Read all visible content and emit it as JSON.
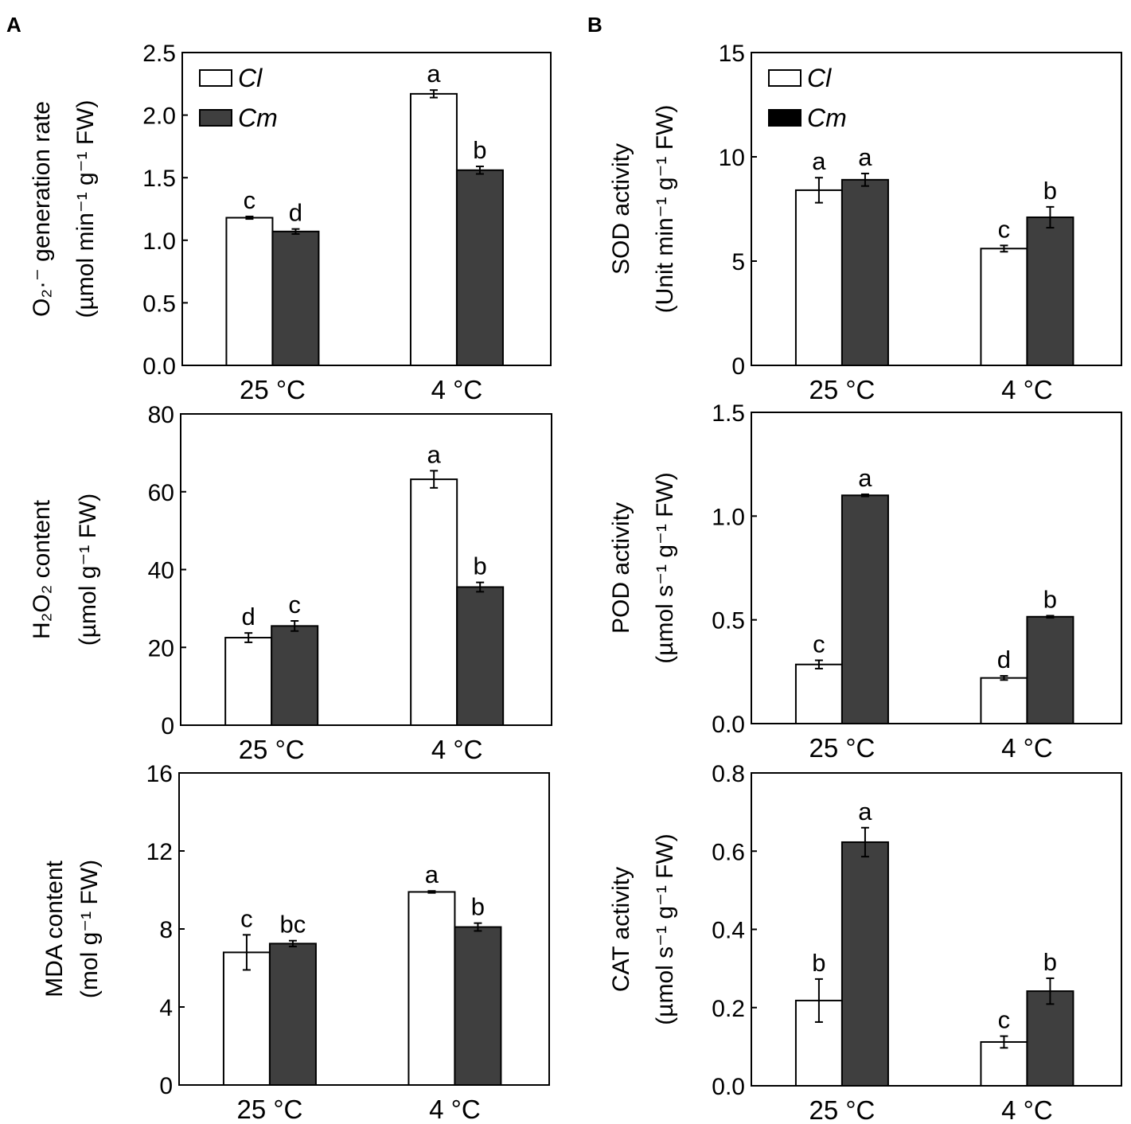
{
  "panel_letters": [
    "A",
    "B"
  ],
  "colors": {
    "cl": "#ffffff",
    "cm_panel_a": "#3f3f3f",
    "cm_panel_b": "#3f3f3f",
    "cm_legend_b": "#000000",
    "axis": "#000000"
  },
  "legend": {
    "series_1": "Cl",
    "series_2": "Cm"
  },
  "chart_data": [
    {
      "id": "o2",
      "panel": "A",
      "type": "bar",
      "categories": [
        "25 °C",
        "4 °C"
      ],
      "ylabel_lines": [
        "O₂·⁻ generation rate",
        "(µmol min⁻¹ g⁻¹ FW)"
      ],
      "ylim": [
        0,
        2.5
      ],
      "yticks": [
        0,
        0.5,
        1.0,
        1.5,
        2.0,
        2.5
      ],
      "tick_decimals": 1,
      "has_legend": true,
      "series": [
        {
          "name": "Cl",
          "values": [
            1.18,
            2.17
          ],
          "errors": [
            0.01,
            0.03
          ],
          "letters": [
            "c",
            "a"
          ]
        },
        {
          "name": "Cm",
          "values": [
            1.07,
            1.56
          ],
          "errors": [
            0.02,
            0.03
          ],
          "letters": [
            "d",
            "b"
          ]
        }
      ]
    },
    {
      "id": "h2o2",
      "panel": "A",
      "type": "bar",
      "categories": [
        "25 °C",
        "4 °C"
      ],
      "ylabel_lines": [
        "H₂O₂  content",
        "(µmol g⁻¹ FW)"
      ],
      "ylim": [
        0,
        80
      ],
      "yticks": [
        0,
        20,
        40,
        60,
        80
      ],
      "tick_decimals": 0,
      "has_legend": false,
      "series": [
        {
          "name": "Cl",
          "values": [
            22.5,
            63.2
          ],
          "errors": [
            1.2,
            2.2
          ],
          "letters": [
            "d",
            "a"
          ]
        },
        {
          "name": "Cm",
          "values": [
            25.5,
            35.5
          ],
          "errors": [
            1.3,
            1.2
          ],
          "letters": [
            "c",
            "b"
          ]
        }
      ]
    },
    {
      "id": "mda",
      "panel": "A",
      "type": "bar",
      "categories": [
        "25 °C",
        "4 °C"
      ],
      "ylabel_lines": [
        "MDA content",
        "(mol g⁻¹ FW)"
      ],
      "ylim": [
        0,
        16
      ],
      "yticks": [
        0,
        4,
        8,
        12,
        16
      ],
      "tick_decimals": 0,
      "has_legend": false,
      "series": [
        {
          "name": "Cl",
          "values": [
            6.8,
            9.9
          ],
          "errors": [
            0.9,
            0.05
          ],
          "letters": [
            "c",
            "a"
          ]
        },
        {
          "name": "Cm",
          "values": [
            7.25,
            8.1
          ],
          "errors": [
            0.15,
            0.2
          ],
          "letters": [
            "bc",
            "b"
          ]
        }
      ]
    },
    {
      "id": "sod",
      "panel": "B",
      "type": "bar",
      "categories": [
        "25 °C",
        "4 °C"
      ],
      "ylabel_lines": [
        "SOD activity",
        "(Unit min⁻¹ g⁻¹ FW)"
      ],
      "ylim": [
        0,
        15
      ],
      "yticks": [
        0,
        5,
        10,
        15
      ],
      "tick_decimals": 0,
      "has_legend": true,
      "series": [
        {
          "name": "Cl",
          "values": [
            8.4,
            5.6
          ],
          "errors": [
            0.6,
            0.15
          ],
          "letters": [
            "a",
            "c"
          ]
        },
        {
          "name": "Cm",
          "values": [
            8.9,
            7.1
          ],
          "errors": [
            0.3,
            0.5
          ],
          "letters": [
            "a",
            "b"
          ]
        }
      ]
    },
    {
      "id": "pod",
      "panel": "B",
      "type": "bar",
      "categories": [
        "25 °C",
        "4 °C"
      ],
      "ylabel_lines": [
        "POD activity",
        "(µmol s⁻¹ g⁻¹ FW)"
      ],
      "ylim": [
        0,
        1.5
      ],
      "yticks": [
        0,
        0.5,
        1.0,
        1.5
      ],
      "tick_decimals": 1,
      "has_legend": false,
      "series": [
        {
          "name": "Cl",
          "values": [
            0.285,
            0.22
          ],
          "errors": [
            0.02,
            0.01
          ],
          "letters": [
            "c",
            "d"
          ]
        },
        {
          "name": "Cm",
          "values": [
            1.1,
            0.515
          ],
          "errors": [
            0.005,
            0.005
          ],
          "letters": [
            "a",
            "b"
          ]
        }
      ]
    },
    {
      "id": "cat",
      "panel": "B",
      "type": "bar",
      "categories": [
        "25 °C",
        "4 °C"
      ],
      "ylabel_lines": [
        "CAT activity",
        "(µmol s⁻¹ g⁻¹ FW)"
      ],
      "ylim": [
        0,
        0.8
      ],
      "yticks": [
        0,
        0.2,
        0.4,
        0.6,
        0.8
      ],
      "tick_decimals": 1,
      "has_legend": false,
      "series": [
        {
          "name": "Cl",
          "values": [
            0.218,
            0.112
          ],
          "errors": [
            0.055,
            0.015
          ],
          "letters": [
            "b",
            "c"
          ]
        },
        {
          "name": "Cm",
          "values": [
            0.623,
            0.242
          ],
          "errors": [
            0.037,
            0.033
          ],
          "letters": [
            "a",
            "b"
          ]
        }
      ]
    }
  ]
}
